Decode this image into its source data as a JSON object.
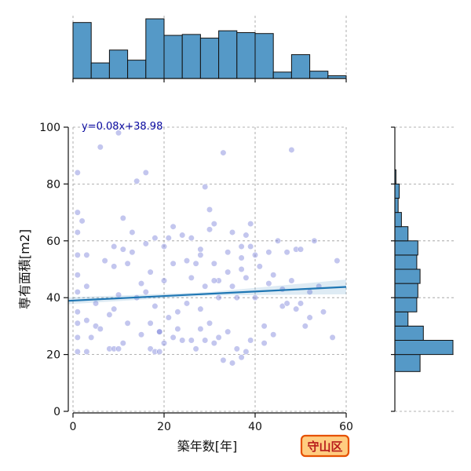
{
  "chart_data": {
    "type": "scatter",
    "xlabel": "築年数[年]",
    "ylabel": "専有面積[m2]",
    "xlim": [
      0,
      60
    ],
    "ylim": [
      0,
      100
    ],
    "x_ticks": [
      0,
      20,
      40,
      60
    ],
    "y_ticks": [
      0,
      20,
      40,
      60,
      80,
      100
    ],
    "grid": true,
    "regression": {
      "label": "y=0.08x+38.98",
      "slope": 0.08,
      "intercept": 38.98,
      "x_range": [
        -1,
        60
      ],
      "color": "#1f77b4"
    },
    "point_color": "#6f78d6",
    "bar_color": "#5599c7",
    "equation_color": "#0a0aa0",
    "top_histogram": {
      "bin_edges": [
        0,
        4,
        8,
        12,
        16,
        20,
        24,
        28,
        32,
        36,
        40,
        44,
        48,
        52,
        56,
        60
      ],
      "counts": [
        61,
        17,
        31,
        20,
        65,
        47,
        48,
        44,
        52,
        50,
        49,
        7,
        26,
        8,
        3
      ]
    },
    "right_histogram": {
      "bin_edges": [
        14,
        20,
        25,
        30,
        35,
        40,
        45,
        50,
        55,
        60,
        65,
        70,
        75,
        80,
        85,
        90,
        95,
        100
      ],
      "counts": [
        23,
        53,
        26,
        12,
        20,
        21,
        23,
        20,
        21,
        12,
        6,
        3,
        4,
        1,
        0,
        0,
        0
      ]
    },
    "x": [
      1,
      1,
      1,
      1,
      1,
      1,
      1,
      1,
      1,
      1,
      3,
      3,
      3,
      4,
      5,
      6,
      8,
      8,
      9,
      9,
      9,
      10,
      10,
      10,
      11,
      11,
      12,
      12,
      13,
      14,
      15,
      15,
      16,
      16,
      17,
      17,
      18,
      18,
      18,
      19,
      19,
      20,
      20,
      21,
      21,
      22,
      22,
      23,
      24,
      24,
      25,
      26,
      26,
      27,
      27,
      28,
      28,
      29,
      29,
      29,
      30,
      30,
      31,
      31,
      31,
      32,
      32,
      33,
      33,
      34,
      34,
      35,
      35,
      36,
      36,
      37,
      37,
      38,
      38,
      38,
      39,
      39,
      40,
      41,
      42,
      43,
      44,
      45,
      46,
      47,
      48,
      48,
      49,
      50,
      51,
      52,
      53,
      55,
      57,
      58,
      2,
      5,
      7,
      11,
      14,
      17,
      20,
      23,
      26,
      28,
      30,
      32,
      35,
      37,
      39,
      42,
      44,
      46,
      49,
      52,
      3,
      6,
      9,
      13,
      16,
      19,
      22,
      25,
      28,
      31,
      34,
      37,
      40,
      43,
      47,
      50,
      54
    ],
    "y": [
      21,
      26,
      31,
      35,
      42,
      48,
      55,
      63,
      70,
      84,
      21,
      32,
      44,
      26,
      30,
      93,
      22,
      34,
      22,
      36,
      51,
      22,
      41,
      98,
      24,
      68,
      31,
      52,
      56,
      81,
      27,
      45,
      59,
      84,
      22,
      31,
      21,
      37,
      61,
      21,
      28,
      24,
      46,
      33,
      61,
      26,
      52,
      29,
      25,
      62,
      38,
      25,
      61,
      22,
      52,
      29,
      57,
      25,
      44,
      79,
      31,
      71,
      24,
      52,
      66,
      26,
      46,
      18,
      91,
      28,
      56,
      17,
      44,
      22,
      40,
      19,
      58,
      21,
      47,
      62,
      25,
      58,
      40,
      51,
      24,
      45,
      27,
      60,
      43,
      56,
      92,
      46,
      36,
      38,
      30,
      33,
      60,
      35,
      26,
      53,
      67,
      38,
      53,
      57,
      40,
      49,
      58,
      35,
      47,
      55,
      64,
      40,
      63,
      50,
      66,
      30,
      48,
      37,
      57,
      42,
      55,
      29,
      58,
      63,
      42,
      28,
      65,
      53,
      36,
      46,
      49,
      54,
      55,
      56,
      38,
      57,
      44
    ]
  },
  "badge": {
    "text": "守山区"
  }
}
